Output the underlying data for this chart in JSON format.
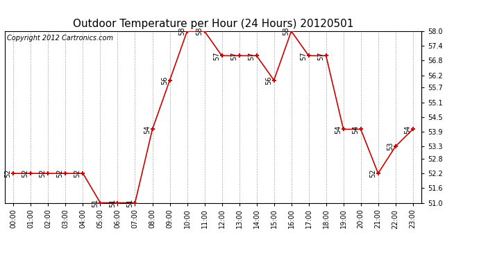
{
  "title": "Outdoor Temperature per Hour (24 Hours) 20120501",
  "copyright_text": "Copyright 2012 Cartronics.com",
  "hours": [
    "00:00",
    "01:00",
    "02:00",
    "03:00",
    "04:00",
    "05:00",
    "06:00",
    "07:00",
    "08:00",
    "09:00",
    "10:00",
    "11:00",
    "12:00",
    "13:00",
    "14:00",
    "15:00",
    "16:00",
    "17:00",
    "18:00",
    "19:00",
    "20:00",
    "21:00",
    "22:00",
    "23:00"
  ],
  "temps": [
    52.2,
    52.2,
    52.2,
    52.2,
    52.2,
    51.0,
    51.0,
    51.0,
    54.0,
    56.0,
    58.0,
    58.0,
    57.0,
    57.0,
    57.0,
    56.0,
    58.0,
    57.0,
    57.0,
    54.0,
    54.0,
    52.2,
    53.3,
    54.0
  ],
  "labels": [
    "52",
    "52",
    "52",
    "52",
    "52",
    "51",
    "51",
    "51",
    "54",
    "56",
    "58",
    "58",
    "57",
    "57",
    "57",
    "56",
    "58",
    "57",
    "57",
    "54",
    "54",
    "52",
    "53",
    "54"
  ],
  "line_color": "#cc0000",
  "marker_color": "#cc0000",
  "bg_color": "#ffffff",
  "grid_color": "#aaaaaa",
  "ylim": [
    51.0,
    58.0
  ],
  "yticks": [
    51.0,
    51.6,
    52.2,
    52.8,
    53.3,
    53.9,
    54.5,
    55.1,
    55.7,
    56.2,
    56.8,
    57.4,
    58.0
  ],
  "ytick_labels": [
    "51.0",
    "51.6",
    "52.2",
    "52.8",
    "53.3",
    "53.9",
    "54.5",
    "55.1",
    "55.7",
    "56.2",
    "56.8",
    "57.4",
    "58.0"
  ],
  "title_fontsize": 11,
  "label_fontsize": 7,
  "copyright_fontsize": 7,
  "annot_fontsize": 7
}
